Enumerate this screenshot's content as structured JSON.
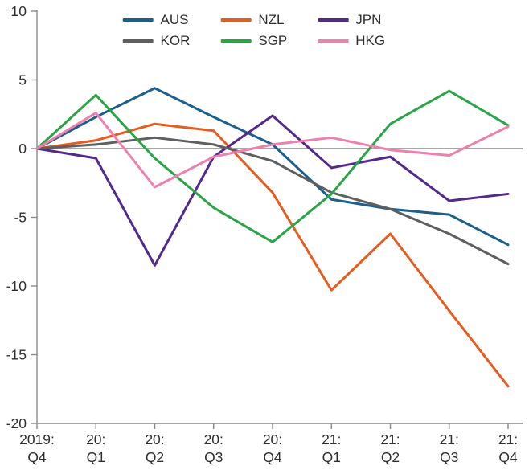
{
  "chart_data": {
    "type": "line",
    "title": "",
    "xlabel": "",
    "ylabel": "",
    "ylim": [
      -20,
      10
    ],
    "y_ticks": [
      10,
      5,
      0,
      -5,
      -10,
      -15,
      -20
    ],
    "x_tick_labels": [
      [
        "2019:",
        "Q4"
      ],
      [
        "20:",
        "Q1"
      ],
      [
        "20:",
        "Q2"
      ],
      [
        "20:",
        "Q3"
      ],
      [
        "20:",
        "Q4"
      ],
      [
        "21:",
        "Q1"
      ],
      [
        "21:",
        "Q2"
      ],
      [
        "21:",
        "Q3"
      ],
      [
        "21:",
        "Q4"
      ]
    ],
    "zero_line": true,
    "grid": false,
    "legend_position": "top",
    "axis_color": "#8a8a8a",
    "text_color": "#2f2f2f",
    "series": [
      {
        "name": "AUS",
        "color": "#1a5f8e",
        "values": [
          0,
          2.3,
          4.4,
          2.3,
          0.3,
          -3.7,
          -4.4,
          -4.8,
          -7.0
        ]
      },
      {
        "name": "NZL",
        "color": "#e75b1e",
        "values": [
          0,
          0.6,
          1.8,
          1.3,
          -3.2,
          -10.3,
          -6.2,
          -11.8,
          -17.3
        ]
      },
      {
        "name": "JPN",
        "color": "#53298c",
        "values": [
          0,
          -0.7,
          -8.5,
          -0.6,
          2.4,
          -1.4,
          -0.6,
          -3.8,
          -3.3
        ]
      },
      {
        "name": "KOR",
        "color": "#5e5f61",
        "values": [
          0,
          0.3,
          0.8,
          0.3,
          -0.9,
          -3.2,
          -4.4,
          -6.2,
          -8.4
        ]
      },
      {
        "name": "SGP",
        "color": "#2aa546",
        "values": [
          0,
          3.9,
          -0.7,
          -4.3,
          -6.8,
          -3.3,
          1.8,
          4.2,
          1.7
        ]
      },
      {
        "name": "HKG",
        "color": "#ef7fae",
        "values": [
          0,
          2.6,
          -2.8,
          -0.6,
          0.3,
          0.8,
          -0.1,
          -0.5,
          1.6
        ]
      }
    ]
  }
}
